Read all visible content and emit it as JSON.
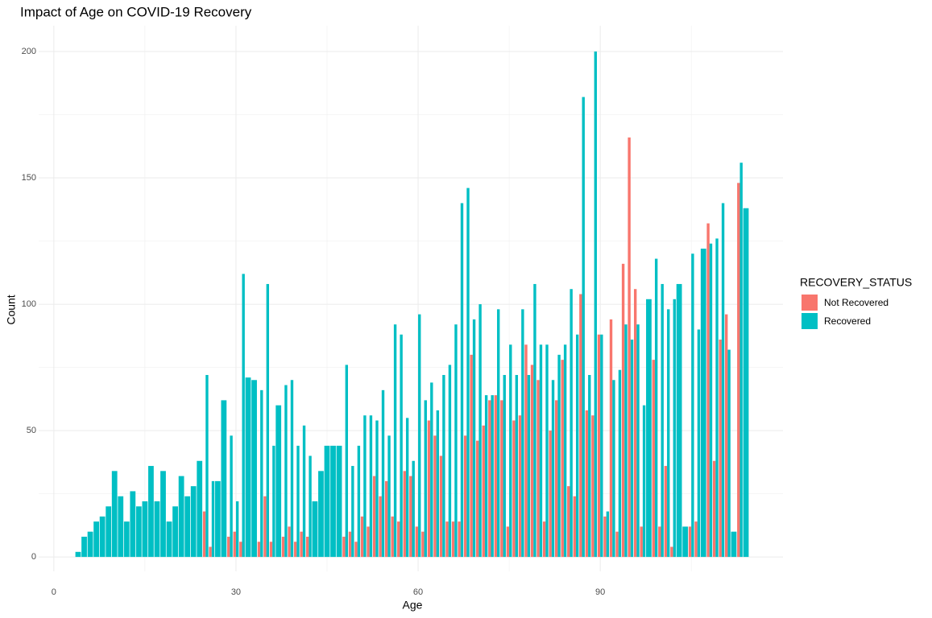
{
  "chart_data": {
    "type": "bar",
    "title": "Impact of Age on COVID-19 Recovery",
    "x_label": "Age",
    "y_label": "Count",
    "legend_title": "RECOVERY_STATUS",
    "legend_position": "right",
    "grid": true,
    "position": "dodge",
    "x": [
      4,
      5,
      6,
      7,
      8,
      9,
      10,
      11,
      12,
      13,
      14,
      15,
      16,
      17,
      18,
      19,
      20,
      21,
      22,
      23,
      24,
      25,
      26,
      27,
      28,
      29,
      30,
      31,
      32,
      33,
      34,
      35,
      36,
      37,
      38,
      39,
      40,
      41,
      42,
      43,
      44,
      45,
      46,
      47,
      48,
      49,
      50,
      51,
      52,
      53,
      54,
      55,
      56,
      57,
      58,
      59,
      60,
      61,
      62,
      63,
      64,
      65,
      66,
      67,
      68,
      69,
      70,
      71,
      72,
      73,
      74,
      75,
      76,
      77,
      78,
      79,
      80,
      81,
      82,
      83,
      84,
      85,
      86,
      87,
      88,
      89,
      90,
      91,
      92,
      93,
      94,
      95,
      96,
      97,
      98,
      99,
      100,
      101,
      102,
      103,
      104,
      105,
      106,
      107,
      108,
      109,
      110,
      111,
      112,
      113,
      114
    ],
    "series": [
      {
        "name": "Not Recovered",
        "color": "#F8766D",
        "values": [
          null,
          null,
          null,
          null,
          null,
          null,
          null,
          null,
          null,
          null,
          null,
          null,
          null,
          null,
          null,
          null,
          null,
          null,
          null,
          null,
          null,
          18,
          4,
          null,
          null,
          8,
          10,
          6,
          null,
          null,
          6,
          24,
          6,
          null,
          8,
          12,
          6,
          10,
          8,
          null,
          null,
          null,
          null,
          null,
          8,
          10,
          6,
          16,
          12,
          32,
          24,
          30,
          16,
          14,
          34,
          32,
          12,
          10,
          54,
          48,
          40,
          14,
          14,
          14,
          48,
          80,
          46,
          52,
          62,
          64,
          62,
          12,
          54,
          56,
          84,
          76,
          70,
          14,
          50,
          62,
          78,
          28,
          24,
          104,
          58,
          56,
          88,
          16,
          94,
          10,
          116,
          166,
          106,
          12,
          null,
          78,
          12,
          36,
          4,
          null,
          null,
          12,
          14,
          null,
          132,
          38,
          86,
          96,
          null,
          148,
          null
        ]
      },
      {
        "name": "Recovered",
        "color": "#00BFC4",
        "values": [
          2,
          8,
          10,
          14,
          16,
          20,
          34,
          24,
          14,
          26,
          20,
          22,
          36,
          22,
          34,
          14,
          20,
          32,
          24,
          28,
          38,
          72,
          30,
          30,
          62,
          48,
          22,
          112,
          71,
          70,
          66,
          108,
          44,
          60,
          68,
          70,
          44,
          52,
          40,
          22,
          34,
          44,
          44,
          44,
          76,
          36,
          44,
          56,
          56,
          54,
          66,
          48,
          92,
          88,
          55,
          38,
          96,
          62,
          69,
          58,
          72,
          76,
          92,
          140,
          146,
          94,
          100,
          64,
          64,
          98,
          72,
          84,
          72,
          98,
          72,
          108,
          84,
          84,
          70,
          80,
          84,
          106,
          88,
          182,
          72,
          200,
          88,
          18,
          70,
          74,
          92,
          86,
          92,
          60,
          102,
          118,
          108,
          98,
          102,
          108,
          12,
          120,
          90,
          122,
          124,
          126,
          140,
          82,
          10,
          156,
          138
        ]
      }
    ],
    "xlim": [
      -2.5,
      120.1
    ],
    "xticks": [
      0,
      30,
      60,
      90
    ],
    "ylim": [
      -5.7,
      210.2
    ],
    "yticks": [
      0,
      50,
      100,
      150,
      200
    ]
  }
}
